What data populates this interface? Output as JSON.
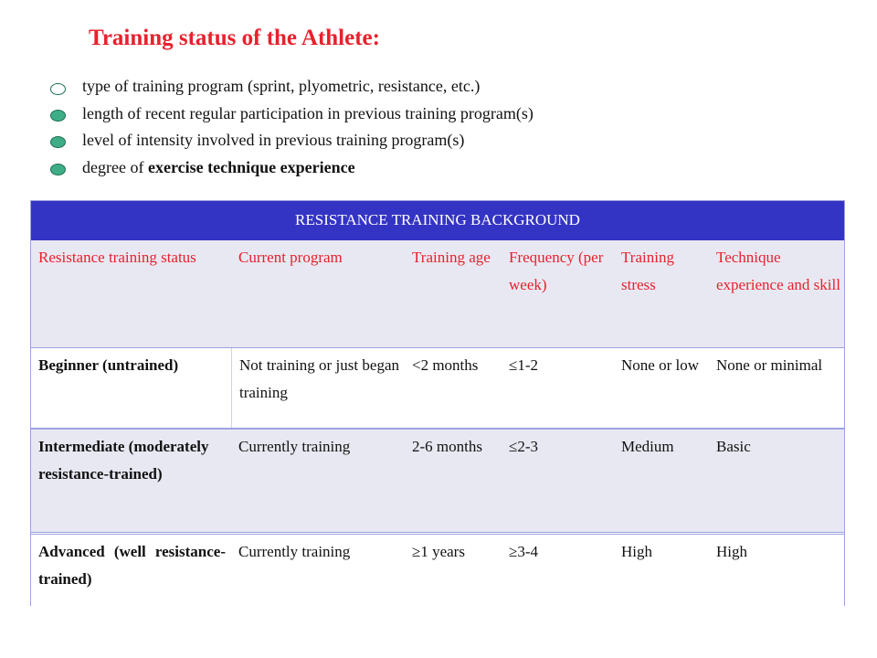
{
  "title": "Training status of the Athlete:",
  "bullets": [
    {
      "text": "type of training program (sprint, plyometric, resistance, etc.)",
      "bold": ""
    },
    {
      "text": "length of recent regular participation in previous training program(s)",
      "bold": ""
    },
    {
      "text": "level of intensity involved in previous training program(s)",
      "bold": ""
    },
    {
      "text": "degree of ",
      "bold": "exercise technique experience"
    }
  ],
  "table": {
    "header": "RESISTANCE TRAINING BACKGROUND",
    "columns": [
      "Resistance training status",
      "Current program",
      "Training age",
      "Frequency (per week)",
      "Training stress",
      "Technique experience and skill"
    ],
    "rows": [
      [
        "Beginner (untrained)",
        "Not training or just began training",
        "<2 months",
        "≤1-2",
        "None or low",
        "None or minimal"
      ],
      [
        "Intermediate (moderately resistance-trained)",
        "Currently training",
        "2-6 months",
        "≤2-3",
        "Medium",
        "Basic"
      ],
      [
        "Advanced (well resistance-trained)",
        "Currently training",
        "≥1 years",
        "≥3-4",
        "High",
        "High"
      ]
    ]
  }
}
